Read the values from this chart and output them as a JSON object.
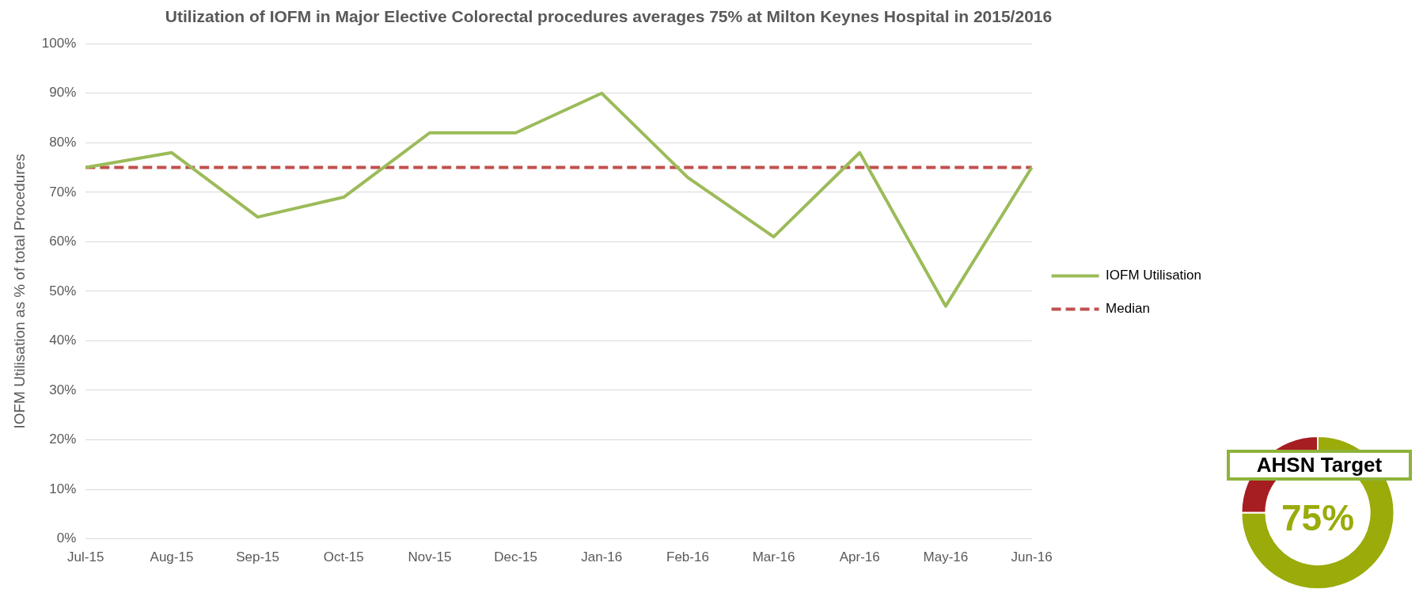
{
  "chart_data": [
    {
      "type": "line",
      "title": "Utilization of IOFM in Major Elective Colorectal procedures averages 75% at Milton Keynes Hospital in 2015/2016",
      "ylabel": "IOFM Utilisation as % of total Procedures",
      "categories": [
        "Jul-15",
        "Aug-15",
        "Sep-15",
        "Oct-15",
        "Nov-15",
        "Dec-15",
        "Jan-16",
        "Feb-16",
        "Mar-16",
        "Apr-16",
        "May-16",
        "Jun-16"
      ],
      "series": [
        {
          "name": "IOFM Utilisation",
          "color": "#9bbb59",
          "values": [
            75,
            78,
            65,
            69,
            82,
            82,
            90,
            73,
            61,
            78,
            47,
            75
          ]
        },
        {
          "name": "Median",
          "color": "#c0504d",
          "line_style": "dashed",
          "values": [
            75,
            75,
            75,
            75,
            75,
            75,
            75,
            75,
            75,
            75,
            75,
            75
          ]
        }
      ],
      "ylim": [
        0,
        100
      ],
      "yticks": [
        {
          "value": 0,
          "label": "0%"
        },
        {
          "value": 10,
          "label": "10%"
        },
        {
          "value": 20,
          "label": "20%"
        },
        {
          "value": 30,
          "label": "30%"
        },
        {
          "value": 40,
          "label": "40%"
        },
        {
          "value": 50,
          "label": "50%"
        },
        {
          "value": 60,
          "label": "60%"
        },
        {
          "value": 70,
          "label": "70%"
        },
        {
          "value": 80,
          "label": "80%"
        },
        {
          "value": 90,
          "label": "90%"
        },
        {
          "value": 100,
          "label": "100%"
        }
      ],
      "grid": "y",
      "legend": "right",
      "marker": "none",
      "line_style": "solid"
    },
    {
      "type": "donut",
      "title": "AHSN Target",
      "categories": [
        null,
        null
      ],
      "values": [
        75,
        25
      ],
      "colors": [
        "#9aab0a",
        "#a61d22"
      ],
      "value_labels": [
        "75%",
        null
      ]
    }
  ]
}
